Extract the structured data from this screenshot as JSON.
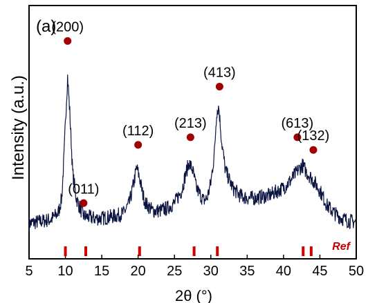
{
  "chart_data": {
    "type": "line",
    "panel_label": "(a)",
    "xlabel": "2θ (°)",
    "ylabel": "Intensity (a.u.)",
    "xlim": [
      5,
      50
    ],
    "ylim": [
      0,
      100
    ],
    "x_ticks": [
      5,
      10,
      15,
      20,
      25,
      30,
      35,
      40,
      45,
      50
    ],
    "grid": false,
    "series": [
      {
        "color": "#0b1440",
        "x": [
          5,
          6,
          7,
          8,
          9,
          9.5,
          9.8,
          10.1,
          10.3,
          10.6,
          11,
          11.5,
          12,
          12.5,
          13,
          14,
          15,
          16,
          17,
          18,
          18.8,
          19.4,
          19.8,
          20.2,
          20.6,
          21,
          22,
          23,
          24,
          25,
          26,
          26.5,
          27,
          27.5,
          28,
          29,
          29.5,
          30,
          30.5,
          30.8,
          31.1,
          31.5,
          32,
          33,
          34,
          35,
          36,
          37,
          38,
          39,
          40,
          41,
          42,
          42.6,
          43.2,
          43.8,
          44.3,
          45,
          46,
          47,
          48,
          49,
          50
        ],
        "y": [
          14,
          14.5,
          15,
          15.5,
          18,
          24,
          40,
          60,
          72,
          58,
          34,
          24,
          20,
          17,
          16.5,
          16,
          16,
          16.5,
          17,
          18,
          22,
          30,
          36,
          32,
          26,
          22,
          19,
          19,
          20,
          22,
          27,
          33,
          38,
          35,
          28,
          23,
          24,
          30,
          42,
          58,
          60,
          46,
          35,
          28,
          25,
          24,
          24,
          24.5,
          25,
          26.5,
          28,
          31,
          35,
          37,
          34,
          32,
          30,
          27,
          21,
          18,
          16,
          15,
          14.5
        ],
        "markers": [
          {
            "label": "(200)",
            "x": 10.3,
            "y": 86
          },
          {
            "label": "(011)",
            "x": 12.5,
            "y": 22
          },
          {
            "label": "(112)",
            "x": 20.0,
            "y": 45
          },
          {
            "label": "(213)",
            "x": 27.2,
            "y": 48
          },
          {
            "label": "(413)",
            "x": 31.2,
            "y": 68
          },
          {
            "label": "(613)",
            "x": 41.9,
            "y": 48
          },
          {
            "label": "(132)",
            "x": 44.1,
            "y": 43
          }
        ]
      }
    ],
    "reference": {
      "label": "Ref",
      "color": "#d00000",
      "positions": [
        10,
        12.8,
        20.2,
        27.7,
        30.9,
        42.7,
        43.8
      ]
    },
    "marker_color": "#a00000"
  }
}
